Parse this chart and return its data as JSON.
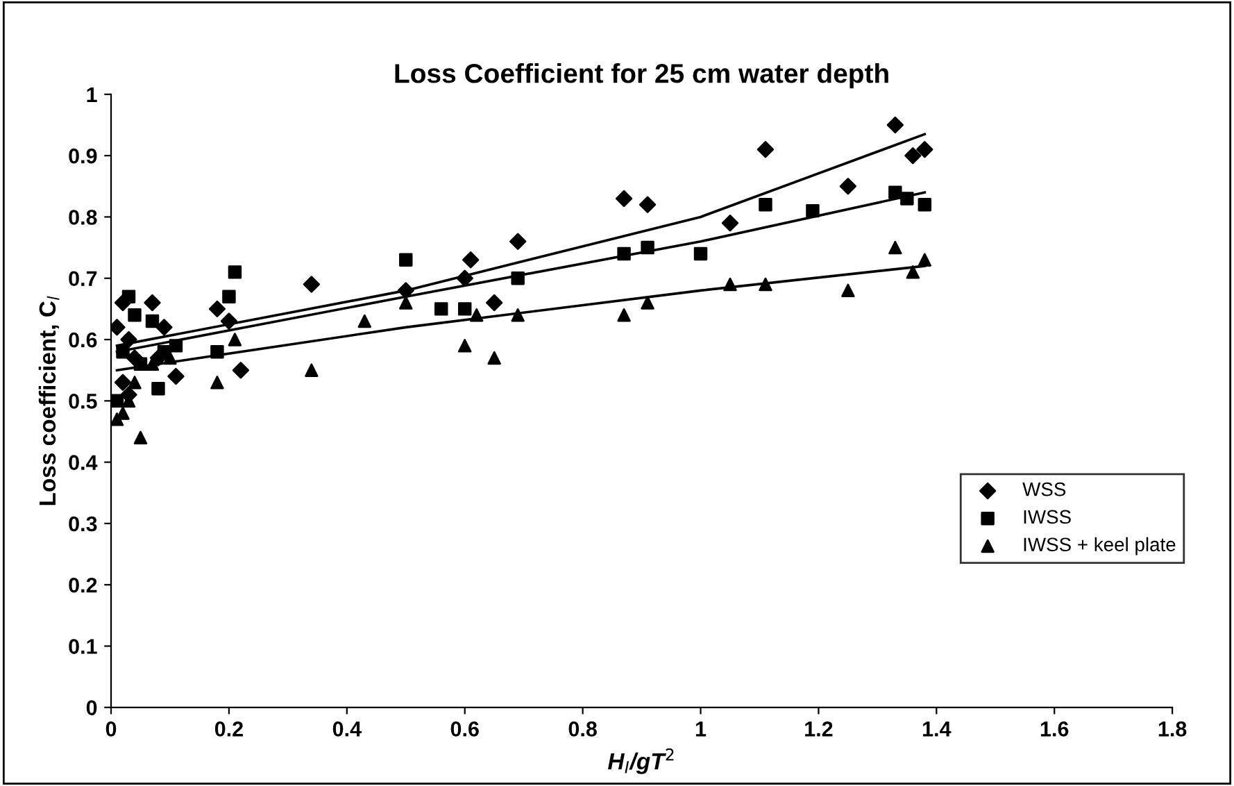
{
  "chart_data": {
    "type": "scatter",
    "title": "Loss Coefficient for 25 cm water depth",
    "xlabel": "H$_{I}$/gT$^{2}$",
    "ylabel": "Loss coefficient, C$_{l}$",
    "xlim": [
      0,
      1.8
    ],
    "xticks": [
      0,
      0.2,
      0.4,
      0.6,
      0.8,
      1,
      1.2,
      1.4,
      1.6,
      1.8
    ],
    "ylim": [
      0,
      1
    ],
    "yticks": [
      0,
      0.1,
      0.2,
      0.3,
      0.4,
      0.5,
      0.6,
      0.7,
      0.8,
      0.9,
      1
    ],
    "grid": false,
    "legend": "bottom right",
    "series": [
      {
        "name": "WSS",
        "color": "#000000",
        "marker": "diamond",
        "x": [
          0.01,
          0.02,
          0.02,
          0.03,
          0.03,
          0.04,
          0.05,
          0.07,
          0.08,
          0.09,
          0.11,
          0.18,
          0.2,
          0.22,
          0.34,
          0.5,
          0.56,
          0.6,
          0.61,
          0.65,
          0.69,
          0.87,
          0.91,
          1.05,
          1.11,
          1.25,
          1.33,
          1.36,
          1.38
        ],
        "values": [
          0.62,
          0.53,
          0.66,
          0.6,
          0.51,
          0.57,
          null,
          0.66,
          0.57,
          0.62,
          0.54,
          0.65,
          0.63,
          0.55,
          0.69,
          0.68,
          null,
          0.7,
          0.73,
          0.66,
          0.76,
          0.83,
          0.82,
          0.79,
          0.91,
          0.85,
          0.95,
          0.9,
          0.91
        ]
      },
      {
        "name": "IWSS",
        "color": "#000000",
        "marker": "square",
        "x": [
          0.01,
          0.02,
          0.03,
          0.04,
          0.05,
          0.07,
          0.08,
          0.09,
          0.11,
          0.18,
          0.2,
          0.21,
          0.34,
          0.5,
          0.56,
          0.6,
          0.69,
          0.87,
          0.91,
          1.0,
          1.11,
          1.19,
          1.33,
          1.35,
          1.38
        ],
        "values": [
          0.5,
          0.58,
          0.67,
          0.64,
          0.56,
          0.63,
          0.52,
          0.58,
          0.59,
          0.58,
          0.67,
          0.71,
          null,
          0.73,
          0.65,
          0.65,
          0.7,
          0.74,
          0.75,
          0.74,
          0.82,
          0.81,
          0.84,
          0.83,
          0.82
        ]
      },
      {
        "name": "IWSS + keel plate",
        "color": "#000000",
        "marker": "triangle",
        "x": [
          0.01,
          0.02,
          0.03,
          0.04,
          0.05,
          0.07,
          0.1,
          0.18,
          0.21,
          0.34,
          0.43,
          0.5,
          0.6,
          0.62,
          0.65,
          0.69,
          0.87,
          0.91,
          1.05,
          1.11,
          1.25,
          1.33,
          1.36,
          1.38
        ],
        "values": [
          0.47,
          0.48,
          0.5,
          0.53,
          0.44,
          0.56,
          0.57,
          0.53,
          0.6,
          0.55,
          0.63,
          0.66,
          0.59,
          0.64,
          0.57,
          0.64,
          0.64,
          0.66,
          0.69,
          0.69,
          0.68,
          0.75,
          0.71,
          0.73
        ]
      },
      {
        "type": "line",
        "color": "#000000",
        "marker": "none",
        "x": [
          0.01,
          0.5,
          1.0,
          1.38
        ],
        "values": [
          0.59,
          0.68,
          0.8,
          0.935
        ]
      },
      {
        "type": "line",
        "color": "#000000",
        "marker": "none",
        "x": [
          0.01,
          0.5,
          1.0,
          1.38
        ],
        "values": [
          0.58,
          0.67,
          0.76,
          0.84
        ]
      },
      {
        "type": "line",
        "color": "#000000",
        "marker": "none",
        "x": [
          0.01,
          0.5,
          1.0,
          1.38
        ],
        "values": [
          0.55,
          0.62,
          0.68,
          0.72
        ]
      }
    ]
  }
}
